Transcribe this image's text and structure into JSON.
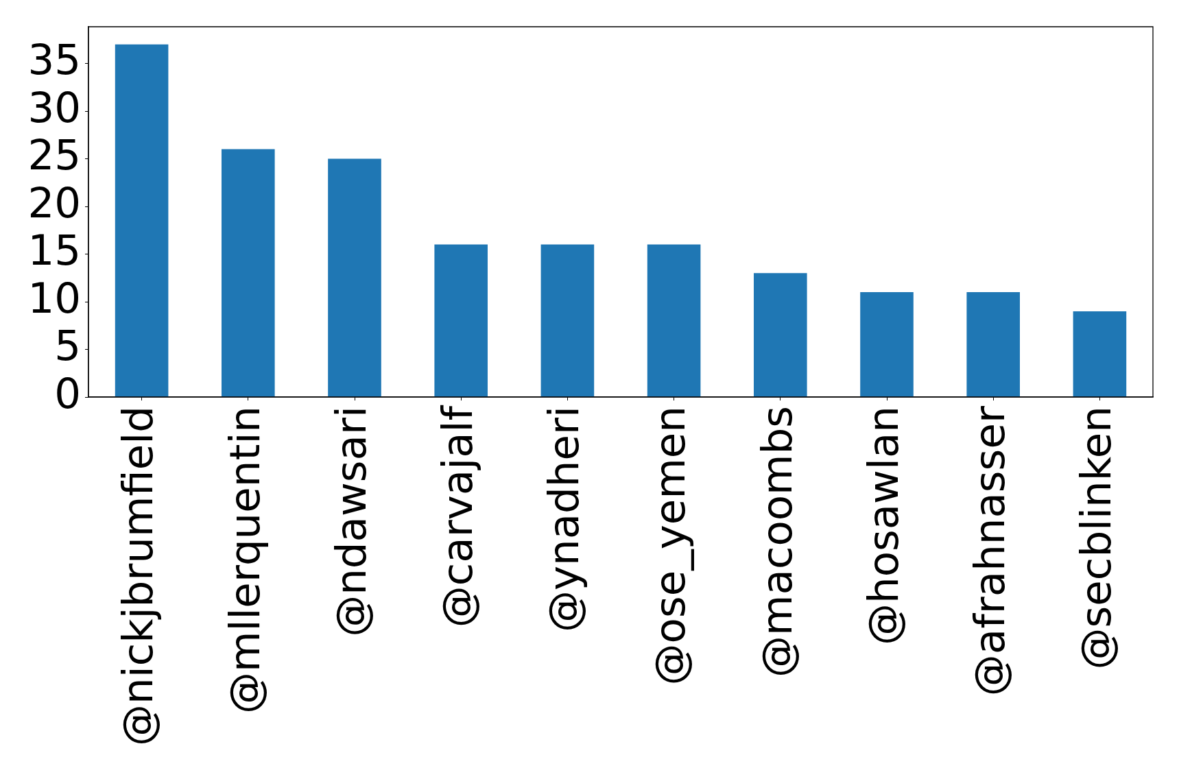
{
  "chart_data": {
    "type": "bar",
    "categories": [
      "@nickjbrumfield",
      "@mllerquentin",
      "@ndawsari",
      "@carvajalf",
      "@ynadheri",
      "@ose_yemen",
      "@macoombs",
      "@hosawlan",
      "@afrahnasser",
      "@secblinken"
    ],
    "values": [
      37,
      26,
      25,
      16,
      16,
      16,
      13,
      11,
      11,
      9
    ],
    "color": "#1f77b4",
    "ylim": [
      0,
      38.85
    ],
    "yticks": [
      0,
      5,
      10,
      15,
      20,
      25,
      30,
      35
    ]
  }
}
